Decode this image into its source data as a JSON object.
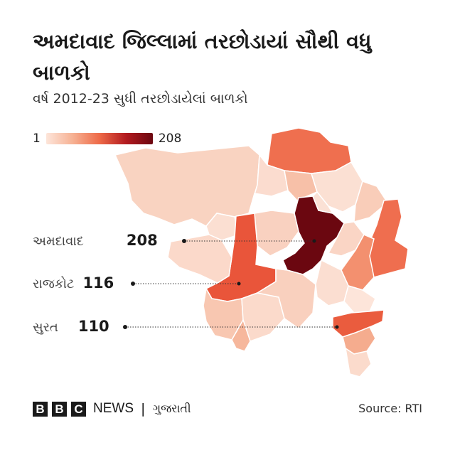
{
  "title": "અમદાવાદ જિલ્લામાં તરછોડાયાં સૌથી વધુ બાળકો",
  "subtitle": "વર્ષ 2012-23 સુધી તરછોડાયેલાં બાળકો",
  "legend": {
    "min_label": "1",
    "max_label": "208",
    "min_value": 1,
    "max_value": 208,
    "colors": [
      "#fde5da",
      "#f6b193",
      "#ee6a48",
      "#b21a1f",
      "#6b0710"
    ]
  },
  "callouts": [
    {
      "name": "અમદાવાદ",
      "value": "208"
    },
    {
      "name": "રાજકોટ",
      "value": "116"
    },
    {
      "name": "સુરત",
      "value": "110"
    }
  ],
  "footer": {
    "brand_letters": [
      "B",
      "B",
      "C"
    ],
    "news": "NEWS",
    "separator": "|",
    "service": "ગુજરાતી",
    "source": "Source: RTI"
  }
}
